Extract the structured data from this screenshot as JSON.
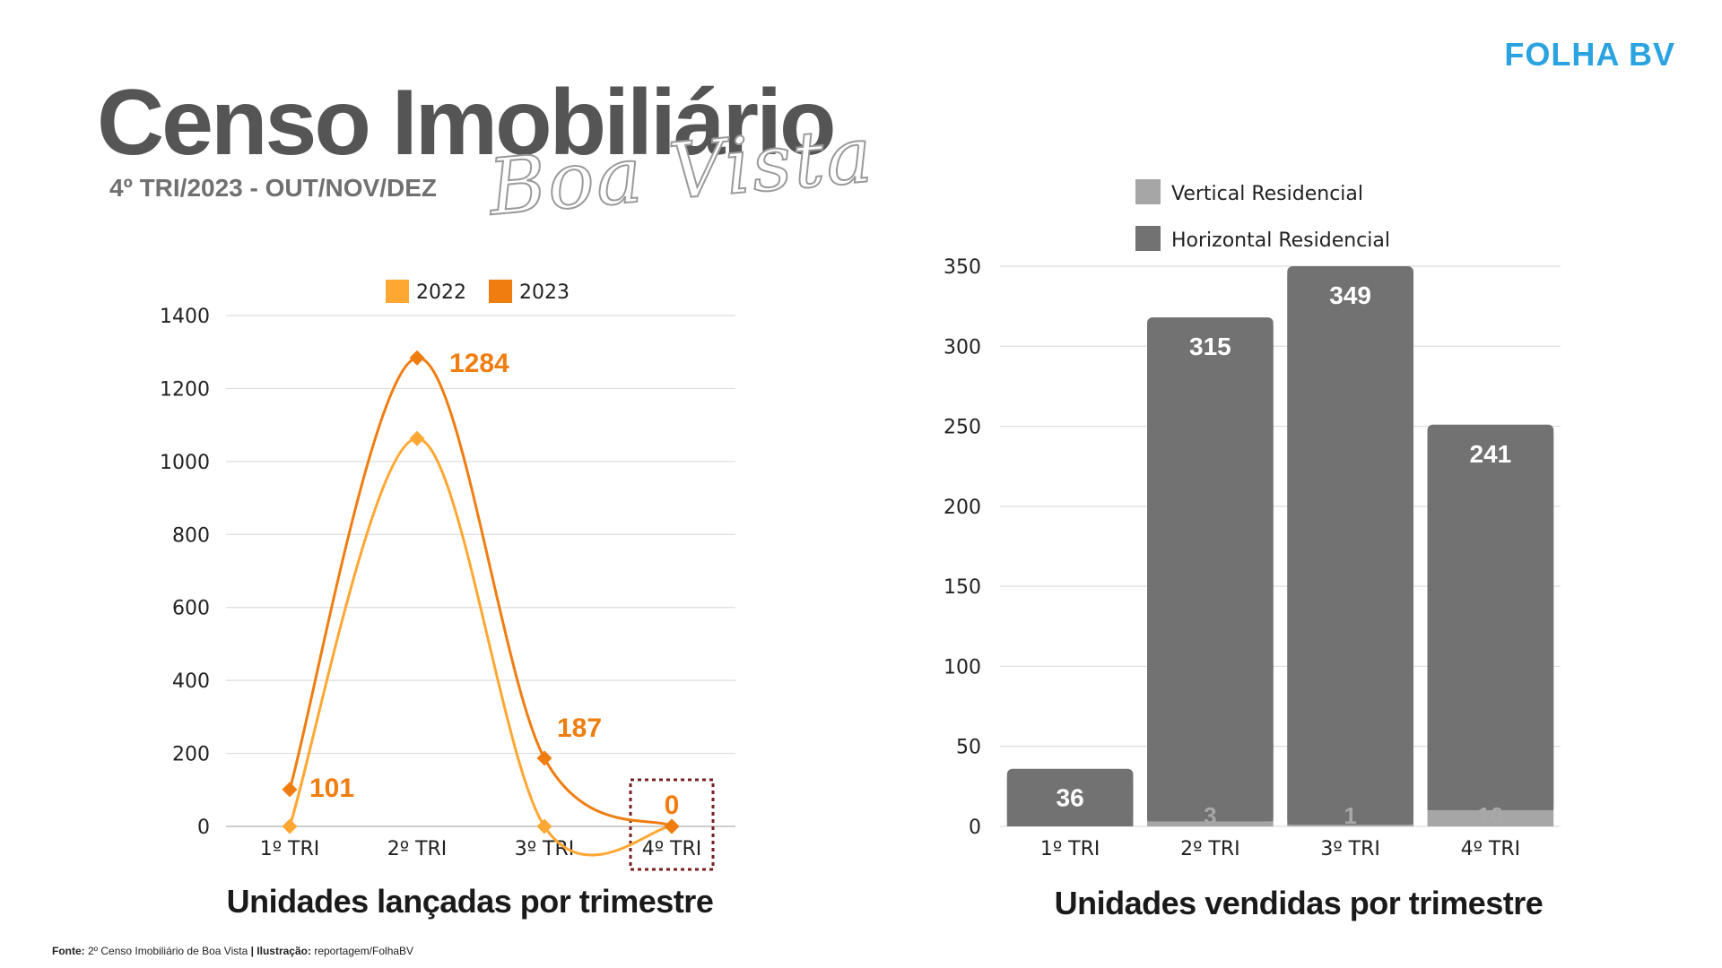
{
  "brand": "FOLHA BV",
  "header": {
    "title": "Censo Imobiliário",
    "subtitle_script": "Boa Vista",
    "period": "4º TRI/2023 - OUT/NOV/DEZ"
  },
  "footer": {
    "source_label": "Fonte:",
    "source_text": " 2º Censo Imobiliário de Boa Vista ",
    "separator": "|",
    "illustration_label": " Ilustração:",
    "illustration_text": " reportagem/FolhaBV"
  },
  "chart_data": [
    {
      "type": "line",
      "title": "Unidades lançadas por trimestre",
      "categories": [
        "1º TRI",
        "2º TRI",
        "3º TRI",
        "4º TRI"
      ],
      "series": [
        {
          "name": "2022",
          "values": [
            0,
            1063,
            0,
            0
          ],
          "color": "#ffa733"
        },
        {
          "name": "2023",
          "values": [
            101,
            1284,
            187,
            0
          ],
          "color": "#f07d10"
        }
      ],
      "data_labels": {
        "series": "2023",
        "values": [
          "101",
          "1284",
          "187",
          "0"
        ]
      },
      "highlight_category": "4º TRI",
      "yticks": [
        0,
        200,
        400,
        600,
        800,
        1000,
        1200,
        1400
      ],
      "ylim": [
        0,
        1400
      ],
      "grid": true,
      "legend_position": "top-center",
      "smooth": true
    },
    {
      "type": "bar",
      "stacked": true,
      "title": "Unidades vendidas por trimestre",
      "categories": [
        "1º TRI",
        "2º TRI",
        "3º TRI",
        "4º TRI"
      ],
      "series": [
        {
          "name": "Vertical Residencial",
          "values": [
            0,
            3,
            1,
            10
          ],
          "labels": [
            "",
            "3",
            "1",
            "10"
          ],
          "color": "#a6a6a6"
        },
        {
          "name": "Horizontal Residencial",
          "values": [
            36,
            315,
            349,
            241
          ],
          "labels": [
            "36",
            "315",
            "349",
            "241"
          ],
          "color": "#727272"
        }
      ],
      "yticks": [
        0,
        50,
        100,
        150,
        200,
        250,
        300,
        350
      ],
      "ylim": [
        0,
        350
      ],
      "grid": true,
      "legend_position": "top-left"
    }
  ]
}
